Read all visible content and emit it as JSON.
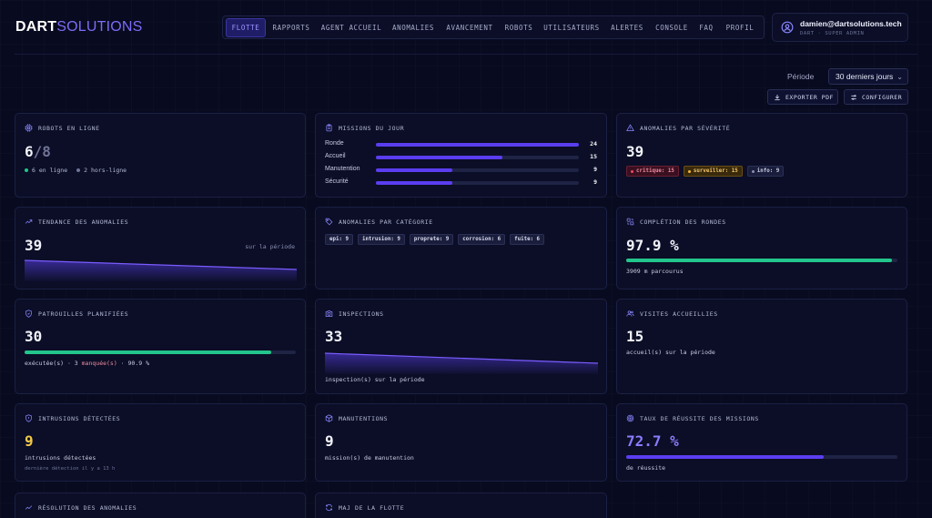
{
  "brand": {
    "part1": "DART",
    "part2": "SOLUTIONS"
  },
  "nav": [
    {
      "label": "FLOTTE",
      "active": true
    },
    {
      "label": "RAPPORTS"
    },
    {
      "label": "AGENT ACCUEIL"
    },
    {
      "label": "ANOMALIES"
    },
    {
      "label": "AVANCEMENT"
    },
    {
      "label": "ROBOTS"
    },
    {
      "label": "UTILISATEURS"
    },
    {
      "label": "ALERTES"
    },
    {
      "label": "CONSOLE"
    },
    {
      "label": "FAQ"
    },
    {
      "label": "PROFIL"
    }
  ],
  "user": {
    "email": "damien@dartsolutions.tech",
    "role": "DART · SUPER ADMIN"
  },
  "period": {
    "label": "Période",
    "value": "30 derniers jours"
  },
  "actions": {
    "export": "EXPORTER PDF",
    "configure": "CONFIGURER"
  },
  "cards": {
    "robots": {
      "title": "ROBOTS EN LIGNE",
      "online": "6",
      "total": "/8",
      "legend_online": "6 en ligne",
      "legend_offline": "2 hors-ligne",
      "color_online": "#22c58b",
      "color_offline": "#6f7396"
    },
    "missions": {
      "title": "MISSIONS DU JOUR",
      "max": 24,
      "rows": [
        {
          "label": "Ronde",
          "value": "24",
          "n": 24
        },
        {
          "label": "Accueil",
          "value": "15",
          "n": 15
        },
        {
          "label": "Manutention",
          "value": "9",
          "n": 9
        },
        {
          "label": "Sécurité",
          "value": "9",
          "n": 9
        }
      ]
    },
    "severity": {
      "title": "ANOMALIES PAR SÉVÉRITÉ",
      "total": "39",
      "chips": [
        {
          "label": "critique: 15",
          "color": "#ef4a68",
          "bg": "#3a1020",
          "border": "#6a1f34"
        },
        {
          "label": "surveiller: 15",
          "color": "#f3b63c",
          "bg": "#3a2a0c",
          "border": "#6a4e16"
        },
        {
          "label": "info: 9",
          "color": "#c9cce4",
          "bg": "#1a1e3c",
          "border": "#2b2f55"
        }
      ]
    },
    "trend": {
      "title": "TENDANCE DES ANOMALIES",
      "value": "39",
      "caption": "sur la période"
    },
    "category": {
      "title": "ANOMALIES PAR CATÉGORIE",
      "tags": [
        "epi: 9",
        "intrusion: 9",
        "proprete: 9",
        "corrosion: 6",
        "fuite: 6"
      ]
    },
    "rounds": {
      "title": "COMPLÉTION DES RONDES",
      "value": "97.9 %",
      "progress": 0.979,
      "caption": "3909 m parcourus",
      "color": "#22c58b"
    },
    "patrols": {
      "title": "PATROUILLES PLANIFIÉES",
      "value": "30",
      "progress": 0.909,
      "done": "exécutée(s) · 3 ",
      "missed": "manquée(s)",
      "rate": " · 90.9 %",
      "color": "#22c58b"
    },
    "inspections": {
      "title": "INSPECTIONS",
      "value": "33",
      "caption": "inspection(s) sur la période"
    },
    "visits": {
      "title": "VISITES ACCUEILLIES",
      "value": "15",
      "caption": "accueil(s) sur la période"
    },
    "intrusions": {
      "title": "INTRUSIONS DÉTECTÉES",
      "value": "9",
      "caption": "intrusions détectées",
      "last": "dernière détection il y a 13 h",
      "color": "#f3c84a"
    },
    "handling": {
      "title": "MANUTENTIONS",
      "value": "9",
      "caption": "mission(s) de manutention"
    },
    "success": {
      "title": "TAUX DE RÉUSSITE DES MISSIONS",
      "value": "72.7 %",
      "progress": 0.727,
      "caption": "de réussite",
      "color": "#6a4cf0"
    },
    "resolution": {
      "title": "RÉSOLUTION DES ANOMALIES"
    },
    "fleet_update": {
      "title": "MAJ DE LA FLOTTE"
    }
  },
  "icons": [
    "user-icon",
    "download-icon",
    "sliders-icon",
    "cpu-icon",
    "clipboard-icon",
    "alert-triangle-icon",
    "trending-up-icon",
    "tag-icon",
    "refresh-icon",
    "shield-icon",
    "camera-icon",
    "users-icon",
    "shield-alert-icon",
    "box-icon",
    "target-icon",
    "activity-icon"
  ]
}
